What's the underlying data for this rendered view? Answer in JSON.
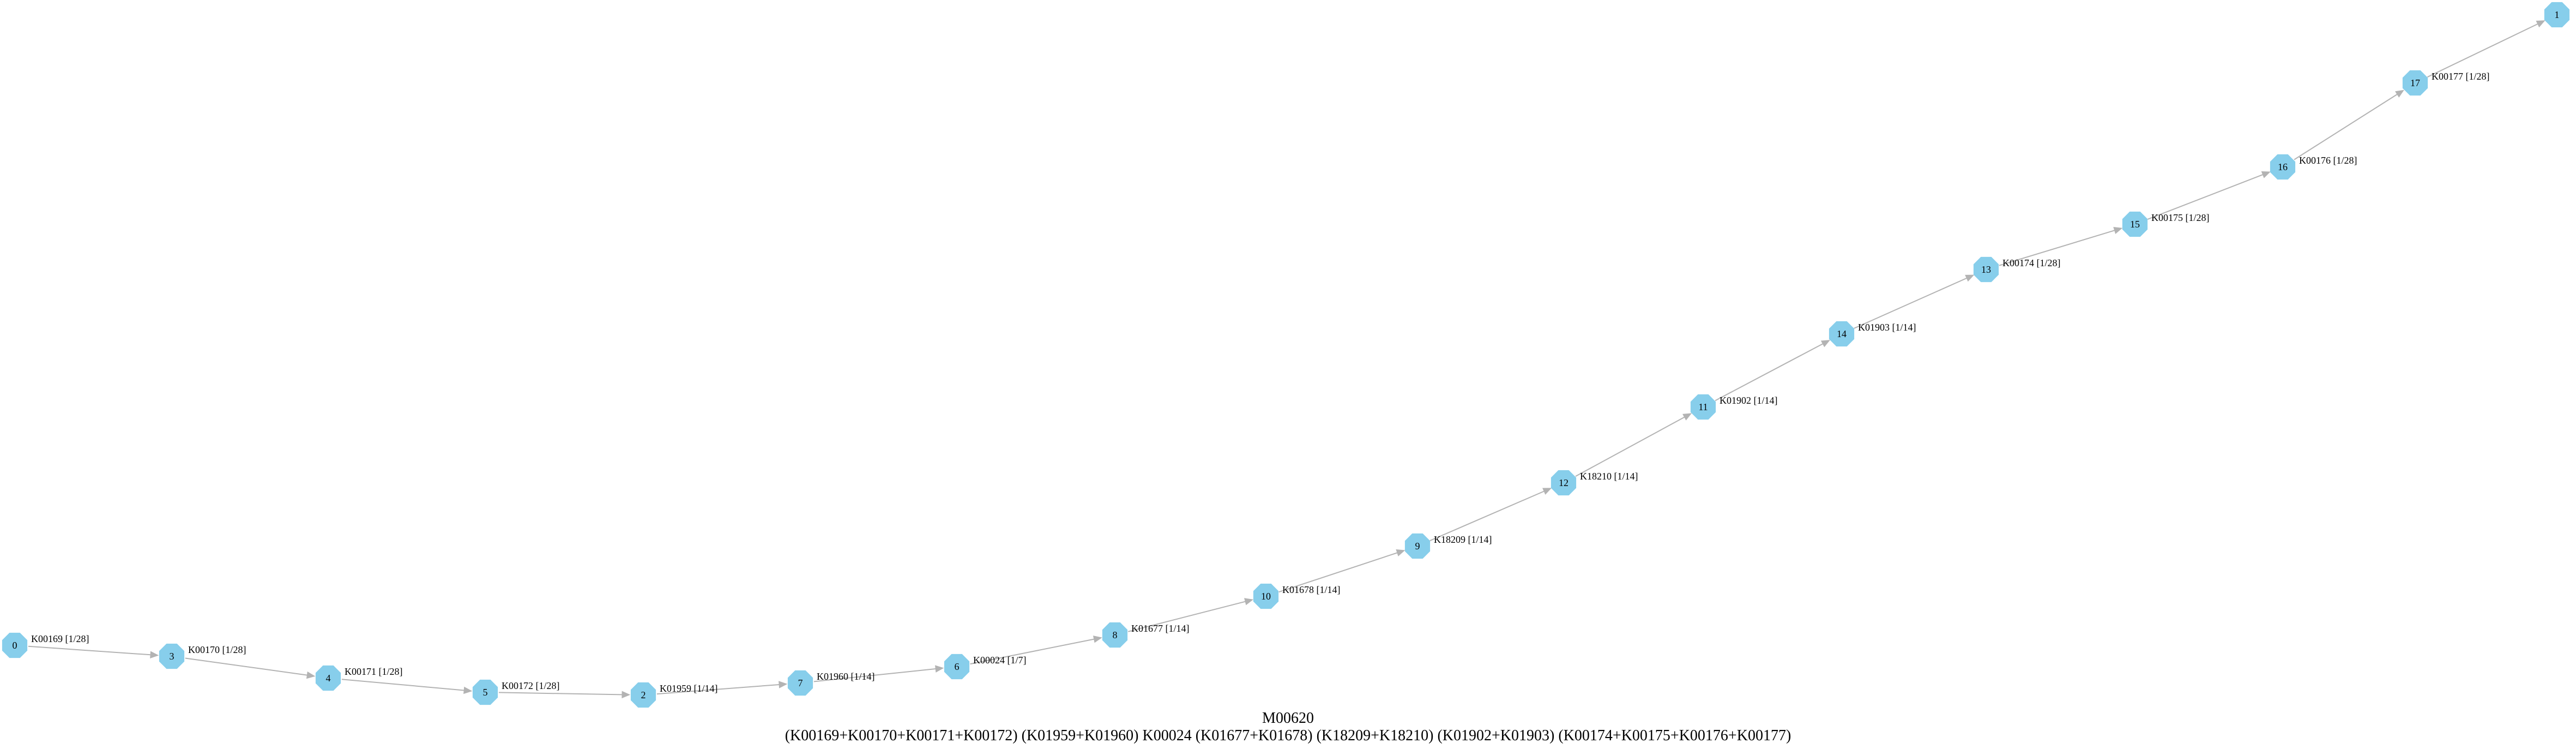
{
  "graph": {
    "module_id": "M00620",
    "definition": "(K00169+K00170+K00171+K00172) (K01959+K01960) K00024 (K01677+K01678) (K18209+K18210) (K01902+K01903) (K00174+K00175+K00176+K00177)",
    "colors": {
      "node_fill": "#87ceeb",
      "edge": "#b3b3b3",
      "text": "#000000"
    },
    "nodes": [
      "0",
      "3",
      "4",
      "5",
      "2",
      "7",
      "6",
      "8",
      "10",
      "9",
      "12",
      "11",
      "14",
      "13",
      "15",
      "16",
      "17",
      "1"
    ],
    "edges": [
      {
        "from": "0",
        "to": "3",
        "label": "K00169 [1/28]"
      },
      {
        "from": "3",
        "to": "4",
        "label": "K00170 [1/28]"
      },
      {
        "from": "4",
        "to": "5",
        "label": "K00171 [1/28]"
      },
      {
        "from": "5",
        "to": "2",
        "label": "K00172 [1/28]"
      },
      {
        "from": "2",
        "to": "7",
        "label": "K01959 [1/14]"
      },
      {
        "from": "7",
        "to": "6",
        "label": "K01960 [1/14]"
      },
      {
        "from": "6",
        "to": "8",
        "label": "K00024 [1/7]"
      },
      {
        "from": "8",
        "to": "10",
        "label": "K01677 [1/14]"
      },
      {
        "from": "10",
        "to": "9",
        "label": "K01678 [1/14]"
      },
      {
        "from": "9",
        "to": "12",
        "label": "K18209 [1/14]"
      },
      {
        "from": "12",
        "to": "11",
        "label": "K18210 [1/14]"
      },
      {
        "from": "11",
        "to": "14",
        "label": "K01902 [1/14]"
      },
      {
        "from": "14",
        "to": "13",
        "label": "K01903 [1/14]"
      },
      {
        "from": "13",
        "to": "15",
        "label": "K00174 [1/28]"
      },
      {
        "from": "15",
        "to": "16",
        "label": "K00175 [1/28]"
      },
      {
        "from": "16",
        "to": "17",
        "label": "K00176 [1/28]"
      },
      {
        "from": "17",
        "to": "1",
        "label": "K00177 [1/28]"
      }
    ]
  }
}
